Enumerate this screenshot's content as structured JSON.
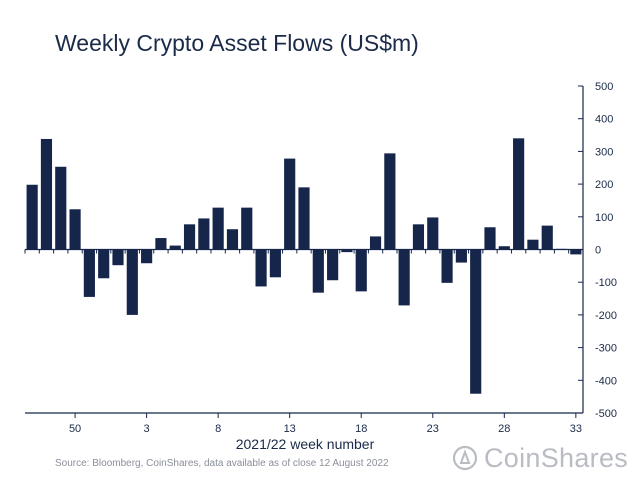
{
  "chart_data": {
    "type": "bar",
    "title": "Weekly Crypto Asset Flows (US$m)",
    "xlabel": "2021/22 week number",
    "ylabel": "",
    "ylim": [
      -500,
      500
    ],
    "y_ticks": [
      500,
      400,
      300,
      200,
      100,
      0,
      -100,
      -200,
      -300,
      -400,
      -500
    ],
    "y_axis_position": "right",
    "grid": false,
    "bar_color": "#16264a",
    "x_tick_labels": [
      {
        "label": "50",
        "index": 3
      },
      {
        "label": "3",
        "index": 8
      },
      {
        "label": "8",
        "index": 13
      },
      {
        "label": "13",
        "index": 18
      },
      {
        "label": "18",
        "index": 23
      },
      {
        "label": "23",
        "index": 28
      },
      {
        "label": "28",
        "index": 33
      },
      {
        "label": "33",
        "index": 38
      }
    ],
    "values": [
      198,
      338,
      253,
      123,
      -145,
      -88,
      -48,
      -200,
      -42,
      35,
      12,
      77,
      95,
      128,
      62,
      128,
      -113,
      -85,
      278,
      190,
      -132,
      -94,
      -8,
      -128,
      40,
      294,
      -171,
      77,
      98,
      -102,
      -40,
      -441,
      68,
      10,
      340,
      30,
      73,
      2,
      -15
    ]
  },
  "source_note": "Source: Bloomberg, CoinShares, data available as of close 12 August 2022",
  "logo": {
    "text": "CoinShares",
    "color": "#b9bcc2"
  }
}
